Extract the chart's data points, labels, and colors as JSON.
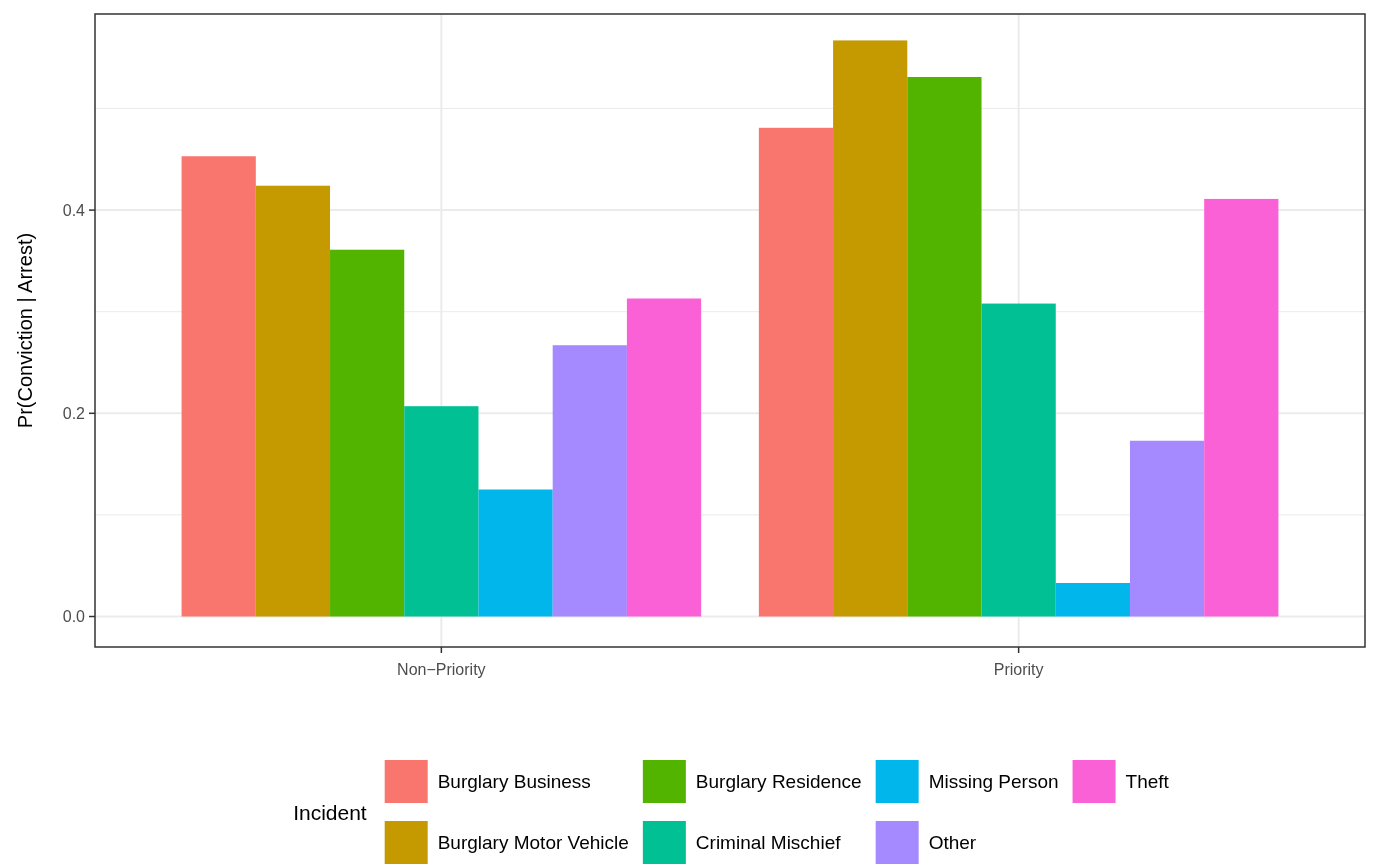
{
  "chart_data": {
    "type": "bar",
    "ylabel": "Pr(Conviction | Arrest)",
    "legend_title": "Incident",
    "legend": "bottom",
    "grid": true,
    "categories": [
      "Non−Priority",
      "Priority"
    ],
    "ylim": [
      -0.03,
      0.593
    ],
    "yticks": [
      {
        "value": 0,
        "label": "0.0"
      },
      {
        "value": 0.1,
        "label": null
      },
      {
        "value": 0.2,
        "label": "0.2"
      },
      {
        "value": 0.3,
        "label": null
      },
      {
        "value": 0.4,
        "label": "0.4"
      },
      {
        "value": 0.5,
        "label": null
      }
    ],
    "series": [
      {
        "name": "Burglary Business",
        "color": "#f8766d",
        "values": [
          0.453,
          0.481
        ]
      },
      {
        "name": "Burglary Motor Vehicle",
        "color": "#c49a00",
        "values": [
          0.424,
          0.567
        ]
      },
      {
        "name": "Burglary Residence",
        "color": "#53b400",
        "values": [
          0.361,
          0.531
        ]
      },
      {
        "name": "Criminal Mischief",
        "color": "#00c094",
        "values": [
          0.207,
          0.308
        ]
      },
      {
        "name": "Missing Person",
        "color": "#00b6eb",
        "values": [
          0.125,
          0.033
        ]
      },
      {
        "name": "Other",
        "color": "#a58aff",
        "values": [
          0.267,
          0.173
        ]
      },
      {
        "name": "Theft",
        "color": "#fb61d7",
        "values": [
          0.313,
          0.411
        ]
      }
    ]
  }
}
